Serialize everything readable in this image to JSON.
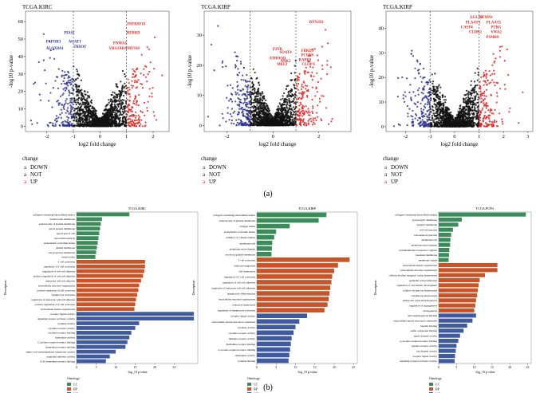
{
  "panel_labels": {
    "a": "(a)",
    "b": "(b)"
  },
  "colors": {
    "down": "#2b2f8f",
    "not": "#111111",
    "up": "#e32624",
    "cc": "#3b8c5a",
    "bp": "#c8552a",
    "mf": "#3f5a9e"
  },
  "chart_data": [
    {
      "type": "scatter",
      "id": "volcano-kirc",
      "title": "TCGA.KIRC",
      "xlabel": "log2 fold change",
      "ylabel": "-log10 p-value",
      "xlim": [
        -2.8,
        2.6
      ],
      "ylim": [
        -3,
        66
      ],
      "xticks": [
        -2,
        -1,
        0,
        1,
        2
      ],
      "yticks": [
        0,
        10,
        20,
        30,
        40,
        50,
        60
      ],
      "thresholds": [
        -1,
        1
      ],
      "legend": {
        "title": "change",
        "entries": [
          "DOWN",
          "NOT",
          "UP"
        ]
      },
      "annotations": [
        {
          "label": "TNFRSF18",
          "x": 1.35,
          "y": 58,
          "group": "UP"
        },
        {
          "label": "HEBRD",
          "x": 1.25,
          "y": 53,
          "group": "UP"
        },
        {
          "label": "PNMA3",
          "x": 0.75,
          "y": 47,
          "group": "UP"
        },
        {
          "label": "VRGC",
          "x": 0.55,
          "y": 44,
          "group": "UP"
        },
        {
          "label": "ADAMTS10",
          "x": 1.1,
          "y": 44,
          "group": "UP"
        },
        {
          "label": "PIAS1",
          "x": -1.15,
          "y": 53,
          "group": "DOWN"
        },
        {
          "label": "PAPOR3",
          "x": -1.75,
          "y": 48,
          "group": "DOWN"
        },
        {
          "label": "ALOX8A1",
          "x": -1.7,
          "y": 44,
          "group": "DOWN"
        },
        {
          "label": "AGAT1",
          "x": -0.95,
          "y": 48,
          "group": "DOWN"
        },
        {
          "label": "TBSOT",
          "x": -0.75,
          "y": 45,
          "group": "DOWN"
        }
      ]
    },
    {
      "type": "scatter",
      "id": "volcano-kirp",
      "title": "TCGA.KIRP",
      "xlabel": "log2 fold change",
      "ylabel": "-log10 p-value",
      "xlim": [
        -3.0,
        3.4
      ],
      "ylim": [
        -2,
        38
      ],
      "xticks": [
        -2,
        0,
        2
      ],
      "yticks": [
        0,
        10,
        20,
        30
      ],
      "thresholds": [
        -1,
        1
      ],
      "legend": {
        "title": "change",
        "entries": [
          "DOWN",
          "NOT",
          "UP"
        ]
      },
      "annotations": [
        {
          "label": "RTN1D1",
          "x": 1.9,
          "y": 34,
          "group": "UP"
        },
        {
          "label": "P2YR",
          "x": 0.2,
          "y": 25,
          "group": "UP"
        },
        {
          "label": "SOAT4",
          "x": 0.55,
          "y": 24,
          "group": "UP"
        },
        {
          "label": "ATHOOD",
          "x": 0.2,
          "y": 22,
          "group": "UP"
        },
        {
          "label": "ANK2",
          "x": 0.55,
          "y": 21,
          "group": "UP"
        },
        {
          "label": "MEF2",
          "x": 0.4,
          "y": 20,
          "group": "UP"
        },
        {
          "label": "FBRD3",
          "x": 1.5,
          "y": 24.5,
          "group": "UP"
        },
        {
          "label": "PCENS",
          "x": 1.5,
          "y": 23,
          "group": "UP"
        },
        {
          "label": "RAPH1",
          "x": 1.4,
          "y": 21.5,
          "group": "UP"
        },
        {
          "label": "CLOPX",
          "x": 1.55,
          "y": 20,
          "group": "UP"
        }
      ]
    },
    {
      "type": "scatter",
      "id": "volcano-kirp-2",
      "title": "TCGA.KIRP",
      "xlabel": "log2 fold change",
      "ylabel": "-log10 p-value",
      "xlim": [
        -2.8,
        3.2
      ],
      "ylim": [
        -2,
        47
      ],
      "xticks": [
        -2,
        -1,
        0,
        1,
        2,
        3
      ],
      "yticks": [
        0,
        10,
        20,
        30,
        40
      ],
      "thresholds": [
        -1,
        1
      ],
      "legend": {
        "title": "change",
        "entries": [
          "DOWN",
          "NOT",
          "UP"
        ]
      },
      "annotations": [
        {
          "label": "EGLN3",
          "x": 0.9,
          "y": 44,
          "group": "UP"
        },
        {
          "label": "STMN1",
          "x": 1.3,
          "y": 44,
          "group": "UP"
        },
        {
          "label": "PLAAT3",
          "x": 0.75,
          "y": 42,
          "group": "UP"
        },
        {
          "label": "PLAAT5",
          "x": 1.6,
          "y": 42,
          "group": "UP"
        },
        {
          "label": "CASP4",
          "x": 0.5,
          "y": 40,
          "group": "UP"
        },
        {
          "label": "PTRG",
          "x": 1.7,
          "y": 40,
          "group": "UP"
        },
        {
          "label": "CLDN2",
          "x": 0.85,
          "y": 38,
          "group": "UP"
        },
        {
          "label": "VWA2",
          "x": 1.7,
          "y": 38,
          "group": "UP"
        },
        {
          "label": "PSMB9",
          "x": 1.55,
          "y": 36,
          "group": "UP"
        }
      ]
    },
    {
      "type": "bar",
      "id": "go-kirc",
      "orientation": "horizontal",
      "title": "TCGA.KIRC",
      "xlabel": "-log_10 p value",
      "ylabel": "Description",
      "xlim": [
        0,
        31
      ],
      "xticks": [
        0,
        5,
        10,
        15,
        20,
        25
      ],
      "legend": {
        "title": "Ontology",
        "entries": [
          "CC",
          "BP",
          "MF"
        ]
      },
      "bars": [
        {
          "label": "collagen-containing extracellular matrix",
          "value": 13.5,
          "group": "CC"
        },
        {
          "label": "brush border membrane",
          "value": 6.5,
          "group": "CC"
        },
        {
          "label": "external side of plasma membrane",
          "value": 6.2,
          "group": "CC"
        },
        {
          "label": "apical plasma membrane",
          "value": 6.0,
          "group": "CC"
        },
        {
          "label": "apical part of cell",
          "value": 5.8,
          "group": "CC"
        },
        {
          "label": "blood microparticle",
          "value": 5.6,
          "group": "CC"
        },
        {
          "label": "endoplasmic reticulum lumen",
          "value": 5.4,
          "group": "CC"
        },
        {
          "label": "plasma membrane",
          "value": 5.2,
          "group": "CC"
        },
        {
          "label": "cell projection membrane",
          "value": 5.0,
          "group": "CC"
        },
        {
          "label": "brush border",
          "value": 4.8,
          "group": "CC"
        },
        {
          "label": "T cell activation",
          "value": 17.5,
          "group": "BP"
        },
        {
          "label": "regulation of T cell activation",
          "value": 17.5,
          "group": "BP"
        },
        {
          "label": "regulation of cell-cell adhesion",
          "value": 17.3,
          "group": "BP"
        },
        {
          "label": "positive regulation of cell-cell adhesion",
          "value": 17.0,
          "group": "BP"
        },
        {
          "label": "leukocyte cell-cell adhesion",
          "value": 16.5,
          "group": "BP"
        },
        {
          "label": "extracellular structure organization",
          "value": 16.0,
          "group": "BP"
        },
        {
          "label": "positive regulation of cell activation",
          "value": 15.8,
          "group": "BP"
        },
        {
          "label": "lymphocyte activation",
          "value": 15.5,
          "group": "BP"
        },
        {
          "label": "regulation of leukocyte cell-cell adhesion",
          "value": 15.2,
          "group": "BP"
        },
        {
          "label": "positive regulation of T cell activation",
          "value": 15.0,
          "group": "BP"
        },
        {
          "label": "extracellular matrix organization",
          "value": 14.8,
          "group": "BP"
        },
        {
          "label": "receptor ligand activity",
          "value": 30.0,
          "group": "MF"
        },
        {
          "label": "signaling receptor activator activity",
          "value": 30.0,
          "group": "MF"
        },
        {
          "label": "cytokine activity",
          "value": 16.0,
          "group": "MF"
        },
        {
          "label": "cytokine receptor activity",
          "value": 15.0,
          "group": "MF"
        },
        {
          "label": "cytokine receptor binding",
          "value": 14.0,
          "group": "MF"
        },
        {
          "label": "chemokine activity",
          "value": 13.5,
          "group": "MF"
        },
        {
          "label": "G protein-coupled receptor binding",
          "value": 13.0,
          "group": "MF"
        },
        {
          "label": "chemokine receptor binding",
          "value": 12.5,
          "group": "MF"
        },
        {
          "label": "amino acid transmembrane transporter activity",
          "value": 10.0,
          "group": "MF"
        },
        {
          "label": "peptidase inhibitor activity",
          "value": 8.5,
          "group": "MF"
        },
        {
          "label": "CCR chemokine receptor binding",
          "value": 7.5,
          "group": "MF"
        }
      ]
    },
    {
      "type": "bar",
      "id": "go-kirp",
      "orientation": "horizontal",
      "title": "TCGA.KIRP",
      "xlabel": "-log_10 p value",
      "ylabel": "Description",
      "xlim": [
        0,
        26
      ],
      "xticks": [
        0,
        5,
        10,
        15,
        20,
        25
      ],
      "legend": {
        "title": "Ontology",
        "entries": [
          "CC",
          "BP",
          "MF"
        ]
      },
      "bars": [
        {
          "label": "collagen-containing extracellular matrix",
          "value": 18.0,
          "group": "CC"
        },
        {
          "label": "external side of plasma membrane",
          "value": 16.0,
          "group": "CC"
        },
        {
          "label": "collagen trimer",
          "value": 8.5,
          "group": "CC"
        },
        {
          "label": "endoplasmic reticulum lumen",
          "value": 5.0,
          "group": "CC"
        },
        {
          "label": "complex of collagen trimers",
          "value": 4.5,
          "group": "CC"
        },
        {
          "label": "membrane raft",
          "value": 4.0,
          "group": "CC"
        },
        {
          "label": "membrane microdomain",
          "value": 3.9,
          "group": "CC"
        },
        {
          "label": "secretory granule membrane",
          "value": 3.8,
          "group": "CC"
        },
        {
          "label": "T cell activation",
          "value": 24.0,
          "group": "BP"
        },
        {
          "label": "leukocyte migration",
          "value": 21.0,
          "group": "BP"
        },
        {
          "label": "cell chemotaxis",
          "value": 20.0,
          "group": "BP"
        },
        {
          "label": "regulation of T cell activation",
          "value": 19.5,
          "group": "BP"
        },
        {
          "label": "regulation of cell-cell adhesion",
          "value": 19.3,
          "group": "BP"
        },
        {
          "label": "regulation of leukocyte cell-cell adhesion",
          "value": 19.0,
          "group": "BP"
        },
        {
          "label": "lymphocyte differentiation",
          "value": 18.8,
          "group": "BP"
        },
        {
          "label": "extracellular structure organization",
          "value": 18.6,
          "group": "BP"
        },
        {
          "label": "leukocyte chemotaxis",
          "value": 18.3,
          "group": "BP"
        },
        {
          "label": "regulation of lymphocyte activation",
          "value": 17.5,
          "group": "BP"
        },
        {
          "label": "receptor ligand activity",
          "value": 13.0,
          "group": "MF"
        },
        {
          "label": "extracellular matrix structural constituent",
          "value": 11.0,
          "group": "MF"
        },
        {
          "label": "cytokine activity",
          "value": 10.0,
          "group": "MF"
        },
        {
          "label": "cytokine receptor activity",
          "value": 9.5,
          "group": "MF"
        },
        {
          "label": "immune receptor activity",
          "value": 9.0,
          "group": "MF"
        },
        {
          "label": "chemokine receptor binding",
          "value": 8.8,
          "group": "MF"
        },
        {
          "label": "G protein-coupled receptor binding",
          "value": 8.6,
          "group": "MF"
        },
        {
          "label": "chemokine activity",
          "value": 8.4,
          "group": "MF"
        },
        {
          "label": "cytokine binding",
          "value": 8.2,
          "group": "MF"
        }
      ]
    },
    {
      "type": "bar",
      "id": "go-pcpg",
      "orientation": "horizontal",
      "title": "TCGA.PCPG",
      "xlabel": "-log_10 p value",
      "ylabel": "Description",
      "xlim": [
        0,
        26
      ],
      "xticks": [
        0,
        5,
        10,
        15,
        20,
        25
      ],
      "legend": {
        "title": "Ontology",
        "entries": [
          "CC",
          "BP",
          "MF"
        ]
      },
      "bars": [
        {
          "label": "collagen-containing extracellular matrix",
          "value": 24.5,
          "group": "CC"
        },
        {
          "label": "postsynaptic membrane",
          "value": 6.5,
          "group": "CC"
        },
        {
          "label": "synaptic membrane",
          "value": 5.5,
          "group": "CC"
        },
        {
          "label": "cell-cell junction",
          "value": 4.0,
          "group": "CC"
        },
        {
          "label": "cell-substrate junction",
          "value": 3.5,
          "group": "CC"
        },
        {
          "label": "membrane raft",
          "value": 3.3,
          "group": "CC"
        },
        {
          "label": "membrane microdomain",
          "value": 3.2,
          "group": "CC"
        },
        {
          "label": "transmembrane transporter complex",
          "value": 3.0,
          "group": "CC"
        },
        {
          "label": "basement membrane",
          "value": 2.9,
          "group": "CC"
        },
        {
          "label": "membrane region",
          "value": 2.8,
          "group": "CC"
        },
        {
          "label": "extracellular matrix organization",
          "value": 16.5,
          "group": "BP"
        },
        {
          "label": "extracellular structure organization",
          "value": 16.5,
          "group": "BP"
        },
        {
          "label": "cellular divalent inorganic cation homeostasis",
          "value": 13.0,
          "group": "BP"
        },
        {
          "label": "epithelial cell proliferation",
          "value": 11.5,
          "group": "BP"
        },
        {
          "label": "regulation of vasculature development",
          "value": 11.2,
          "group": "BP"
        },
        {
          "label": "cellular calcium ion homeostasis",
          "value": 11.0,
          "group": "BP"
        },
        {
          "label": "calcium ion homeostasis",
          "value": 10.8,
          "group": "BP"
        },
        {
          "label": "embryonic organ morphogenesis",
          "value": 10.5,
          "group": "BP"
        },
        {
          "label": "regulation of angiogenesis",
          "value": 10.3,
          "group": "BP"
        },
        {
          "label": "axonogenesis",
          "value": 10.0,
          "group": "BP"
        },
        {
          "label": "glycosaminoglycan binding",
          "value": 10.5,
          "group": "MF"
        },
        {
          "label": "extracellular matrix structural constituent",
          "value": 9.5,
          "group": "MF"
        },
        {
          "label": "heparin binding",
          "value": 8.0,
          "group": "MF"
        },
        {
          "label": "sulfur compound binding",
          "value": 7.0,
          "group": "MF"
        },
        {
          "label": "gated channel activity",
          "value": 6.0,
          "group": "MF"
        },
        {
          "label": "G protein-coupled receptor binding",
          "value": 5.5,
          "group": "MF"
        },
        {
          "label": "peptide receptor activity",
          "value": 5.0,
          "group": "MF"
        },
        {
          "label": "ion channel activity",
          "value": 4.8,
          "group": "MF"
        },
        {
          "label": "receptor ligand activity",
          "value": 4.6,
          "group": "MF"
        },
        {
          "label": "signaling receptor activator activity",
          "value": 4.5,
          "group": "MF"
        }
      ]
    }
  ]
}
